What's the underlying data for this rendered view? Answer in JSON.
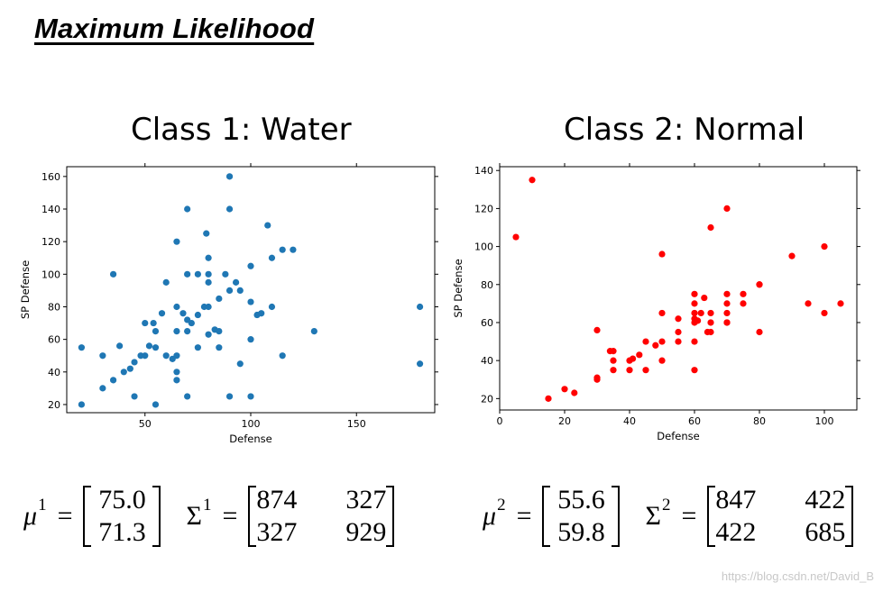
{
  "page": {
    "title": "Maximum Likelihood",
    "watermark": "https://blog.csdn.net/David_B"
  },
  "classes": [
    {
      "title": "Class 1: Water",
      "mu_symbol": "μ",
      "mu_sup": "1",
      "mu": [
        "75.0",
        "71.3"
      ],
      "sigma_symbol": "Σ",
      "sigma_sup": "1",
      "sigma": [
        [
          "874",
          "327"
        ],
        [
          "327",
          "929"
        ]
      ]
    },
    {
      "title": "Class 2: Normal",
      "mu_symbol": "μ",
      "mu_sup": "2",
      "mu": [
        "55.6",
        "59.8"
      ],
      "sigma_symbol": "Σ",
      "sigma_sup": "2",
      "sigma": [
        [
          "847",
          "422"
        ],
        [
          "422",
          "685"
        ]
      ]
    }
  ],
  "equals_sign": "=",
  "colors": {
    "water": "#1f77b4",
    "normal": "#ff0000",
    "axis": "#000000"
  },
  "chart_data": [
    {
      "type": "scatter",
      "title": "",
      "xlabel": "Defense",
      "ylabel": "SP Defense",
      "xlim": [
        13,
        187
      ],
      "ylim": [
        15,
        166
      ],
      "xticks": [
        50,
        100,
        150
      ],
      "yticks": [
        20,
        40,
        60,
        80,
        100,
        120,
        140,
        160
      ],
      "series": [
        {
          "name": "Water",
          "color": "#1f77b4",
          "points": [
            [
              20,
              20
            ],
            [
              20,
              55
            ],
            [
              30,
              50
            ],
            [
              30,
              30
            ],
            [
              35,
              100
            ],
            [
              35,
              35
            ],
            [
              38,
              56
            ],
            [
              40,
              40
            ],
            [
              43,
              42
            ],
            [
              45,
              25
            ],
            [
              45,
              46
            ],
            [
              48,
              50
            ],
            [
              50,
              70
            ],
            [
              50,
              50
            ],
            [
              52,
              56
            ],
            [
              54,
              70
            ],
            [
              55,
              65
            ],
            [
              55,
              55
            ],
            [
              55,
              20
            ],
            [
              58,
              76
            ],
            [
              60,
              95
            ],
            [
              60,
              50
            ],
            [
              63,
              48
            ],
            [
              65,
              120
            ],
            [
              65,
              80
            ],
            [
              65,
              65
            ],
            [
              65,
              50
            ],
            [
              65,
              40
            ],
            [
              65,
              35
            ],
            [
              68,
              76
            ],
            [
              70,
              140
            ],
            [
              70,
              100
            ],
            [
              70,
              72
            ],
            [
              70,
              65
            ],
            [
              70,
              25
            ],
            [
              72,
              70
            ],
            [
              75,
              100
            ],
            [
              75,
              75
            ],
            [
              75,
              55
            ],
            [
              78,
              80
            ],
            [
              79,
              125
            ],
            [
              80,
              110
            ],
            [
              80,
              100
            ],
            [
              80,
              95
            ],
            [
              80,
              80
            ],
            [
              80,
              63
            ],
            [
              83,
              66
            ],
            [
              85,
              85
            ],
            [
              85,
              65
            ],
            [
              85,
              55
            ],
            [
              88,
              100
            ],
            [
              90,
              160
            ],
            [
              90,
              140
            ],
            [
              90,
              90
            ],
            [
              90,
              25
            ],
            [
              93,
              95
            ],
            [
              95,
              90
            ],
            [
              95,
              45
            ],
            [
              100,
              105
            ],
            [
              100,
              83
            ],
            [
              100,
              60
            ],
            [
              100,
              25
            ],
            [
              103,
              75
            ],
            [
              105,
              76
            ],
            [
              108,
              130
            ],
            [
              110,
              110
            ],
            [
              110,
              80
            ],
            [
              115,
              115
            ],
            [
              115,
              50
            ],
            [
              120,
              115
            ],
            [
              130,
              65
            ],
            [
              180,
              80
            ],
            [
              180,
              45
            ]
          ]
        }
      ]
    },
    {
      "type": "scatter",
      "title": "",
      "xlabel": "Defense",
      "ylabel": "SP Defense",
      "xlim": [
        0,
        110
      ],
      "ylim": [
        14,
        142
      ],
      "xticks": [
        0,
        20,
        40,
        60,
        80,
        100
      ],
      "yticks": [
        20,
        40,
        60,
        80,
        100,
        120,
        140
      ],
      "series": [
        {
          "name": "Normal",
          "color": "#ff0000",
          "points": [
            [
              5,
              105
            ],
            [
              10,
              135
            ],
            [
              15,
              20
            ],
            [
              20,
              25
            ],
            [
              23,
              23
            ],
            [
              30,
              56
            ],
            [
              30,
              31
            ],
            [
              30,
              30
            ],
            [
              34,
              45
            ],
            [
              35,
              45
            ],
            [
              35,
              40
            ],
            [
              35,
              35
            ],
            [
              40,
              40
            ],
            [
              40,
              35
            ],
            [
              41,
              41
            ],
            [
              43,
              43
            ],
            [
              45,
              50
            ],
            [
              45,
              35
            ],
            [
              48,
              48
            ],
            [
              50,
              96
            ],
            [
              50,
              65
            ],
            [
              50,
              50
            ],
            [
              50,
              40
            ],
            [
              55,
              62
            ],
            [
              55,
              55
            ],
            [
              55,
              50
            ],
            [
              60,
              75
            ],
            [
              60,
              70
            ],
            [
              60,
              65
            ],
            [
              60,
              62
            ],
            [
              60,
              60
            ],
            [
              60,
              50
            ],
            [
              60,
              35
            ],
            [
              61,
              61
            ],
            [
              62,
              65
            ],
            [
              63,
              73
            ],
            [
              64,
              55
            ],
            [
              65,
              110
            ],
            [
              65,
              65
            ],
            [
              65,
              60
            ],
            [
              65,
              55
            ],
            [
              70,
              120
            ],
            [
              70,
              75
            ],
            [
              70,
              70
            ],
            [
              70,
              65
            ],
            [
              70,
              60
            ],
            [
              70,
              60
            ],
            [
              75,
              75
            ],
            [
              75,
              70
            ],
            [
              80,
              80
            ],
            [
              80,
              80
            ],
            [
              80,
              55
            ],
            [
              90,
              95
            ],
            [
              95,
              70
            ],
            [
              100,
              100
            ],
            [
              100,
              65
            ],
            [
              105,
              70
            ]
          ]
        }
      ]
    }
  ]
}
